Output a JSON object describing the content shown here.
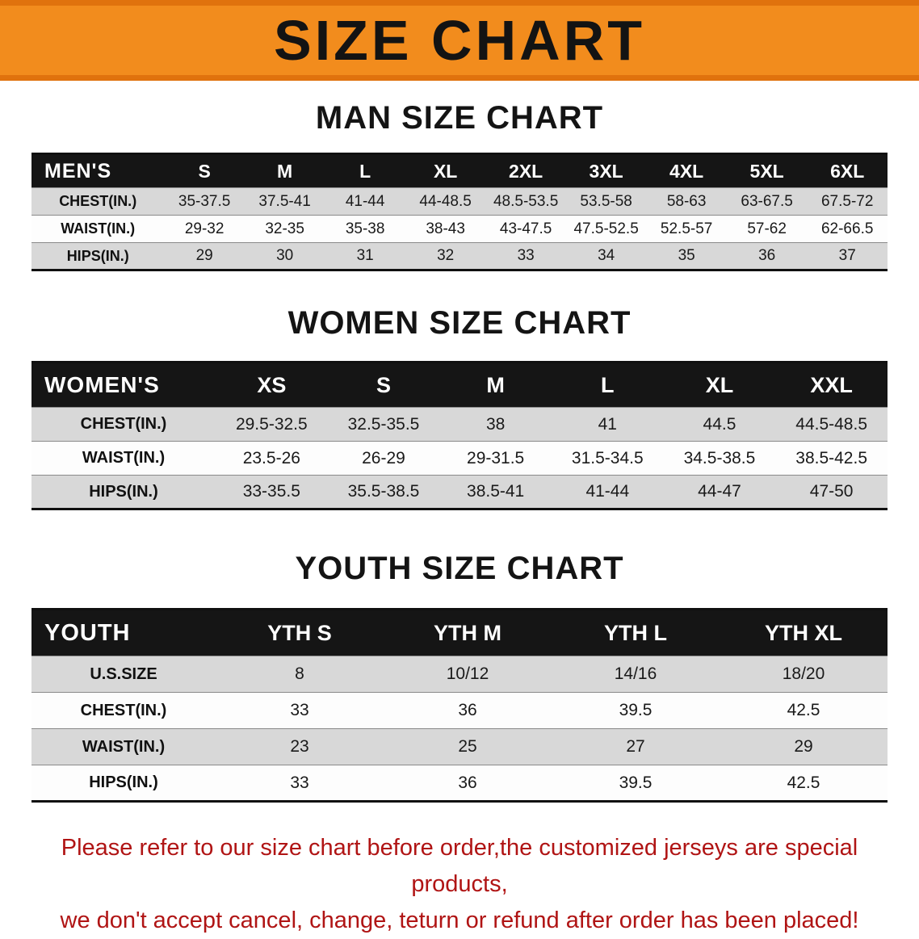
{
  "banner": {
    "title": "SIZE CHART",
    "bg_color": "#f28c1d",
    "edge_color": "#e0720d",
    "text_color": "#131313"
  },
  "sections": [
    {
      "id": "men",
      "heading": "MAN SIZE CHART",
      "table": {
        "corner_label": "MEN'S",
        "columns": [
          "S",
          "M",
          "L",
          "XL",
          "2XL",
          "3XL",
          "4XL",
          "5XL",
          "6XL"
        ],
        "rows": [
          {
            "label": "CHEST(IN.)",
            "values": [
              "35-37.5",
              "37.5-41",
              "41-44",
              "44-48.5",
              "48.5-53.5",
              "53.5-58",
              "58-63",
              "63-67.5",
              "67.5-72"
            ]
          },
          {
            "label": "WAIST(IN.)",
            "values": [
              "29-32",
              "32-35",
              "35-38",
              "38-43",
              "43-47.5",
              "47.5-52.5",
              "52.5-57",
              "57-62",
              "62-66.5"
            ]
          },
          {
            "label": "HIPS(IN.)",
            "values": [
              "29",
              "30",
              "31",
              "32",
              "33",
              "34",
              "35",
              "36",
              "37"
            ]
          }
        ]
      }
    },
    {
      "id": "women",
      "heading": "WOMEN SIZE CHART",
      "table": {
        "corner_label": "WOMEN'S",
        "columns": [
          "XS",
          "S",
          "M",
          "L",
          "XL",
          "XXL"
        ],
        "rows": [
          {
            "label": "CHEST(IN.)",
            "values": [
              "29.5-32.5",
              "32.5-35.5",
              "38",
              "41",
              "44.5",
              "44.5-48.5"
            ]
          },
          {
            "label": "WAIST(IN.)",
            "values": [
              "23.5-26",
              "26-29",
              "29-31.5",
              "31.5-34.5",
              "34.5-38.5",
              "38.5-42.5"
            ]
          },
          {
            "label": "HIPS(IN.)",
            "values": [
              "33-35.5",
              "35.5-38.5",
              "38.5-41",
              "41-44",
              "44-47",
              "47-50"
            ]
          }
        ]
      }
    },
    {
      "id": "youth",
      "heading": "YOUTH SIZE CHART",
      "table": {
        "corner_label": "YOUTH",
        "columns": [
          "YTH S",
          "YTH M",
          "YTH L",
          "YTH XL"
        ],
        "rows": [
          {
            "label": "U.S.SIZE",
            "values": [
              "8",
              "10/12",
              "14/16",
              "18/20"
            ]
          },
          {
            "label": "CHEST(IN.)",
            "values": [
              "33",
              "36",
              "39.5",
              "42.5"
            ]
          },
          {
            "label": "WAIST(IN.)",
            "values": [
              "23",
              "25",
              "27",
              "29"
            ]
          },
          {
            "label": "HIPS(IN.)",
            "values": [
              "33",
              "36",
              "39.5",
              "42.5"
            ]
          }
        ]
      }
    }
  ],
  "footer": {
    "text_color": "#b01414",
    "lines": [
      "Please refer to our size chart before order,the customized jerseys are special products,",
      "we don't accept cancel, change, teturn or refund after order has been placed!"
    ]
  }
}
